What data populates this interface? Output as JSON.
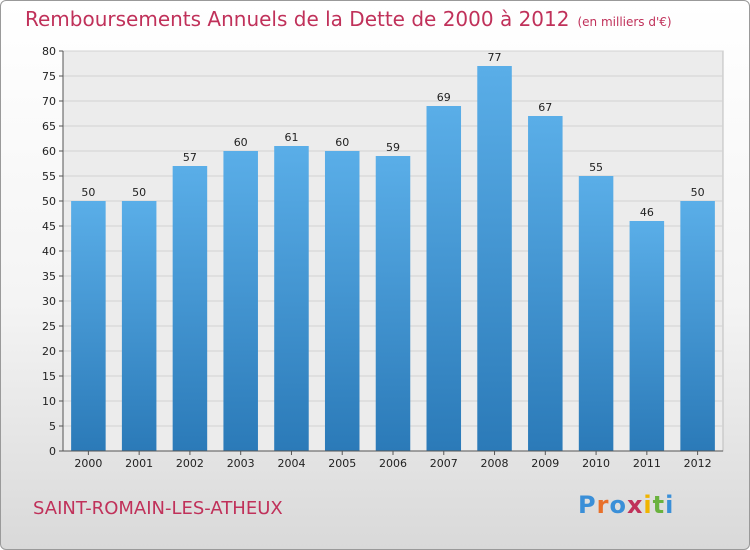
{
  "title": "Remboursements Annuels de la Dette de 2000 à 2012",
  "unit": "(en milliers d'€)",
  "commune": "SAINT-ROMAIN-LES-ATHEUX",
  "logo": {
    "letters": [
      "P",
      "r",
      "o",
      "x",
      "i",
      "t",
      "i"
    ],
    "colors": [
      "#3a8fd8",
      "#e8702a",
      "#3a8fd8",
      "#c0315a",
      "#f0b400",
      "#6ab23e",
      "#3a8fd8"
    ]
  },
  "chart_data": {
    "type": "bar",
    "categories": [
      "2000",
      "2001",
      "2002",
      "2003",
      "2004",
      "2005",
      "2006",
      "2007",
      "2008",
      "2009",
      "2010",
      "2011",
      "2012"
    ],
    "values": [
      50,
      50,
      57,
      60,
      61,
      60,
      59,
      69,
      77,
      67,
      55,
      46,
      50
    ],
    "ylim": [
      0,
      80
    ],
    "yticks": [
      0,
      5,
      10,
      15,
      20,
      25,
      30,
      35,
      40,
      45,
      50,
      55,
      60,
      65,
      70,
      75,
      80
    ],
    "grid": true,
    "bar_color_top": "#5aaee8",
    "bar_color_bottom": "#2b7ab8"
  }
}
